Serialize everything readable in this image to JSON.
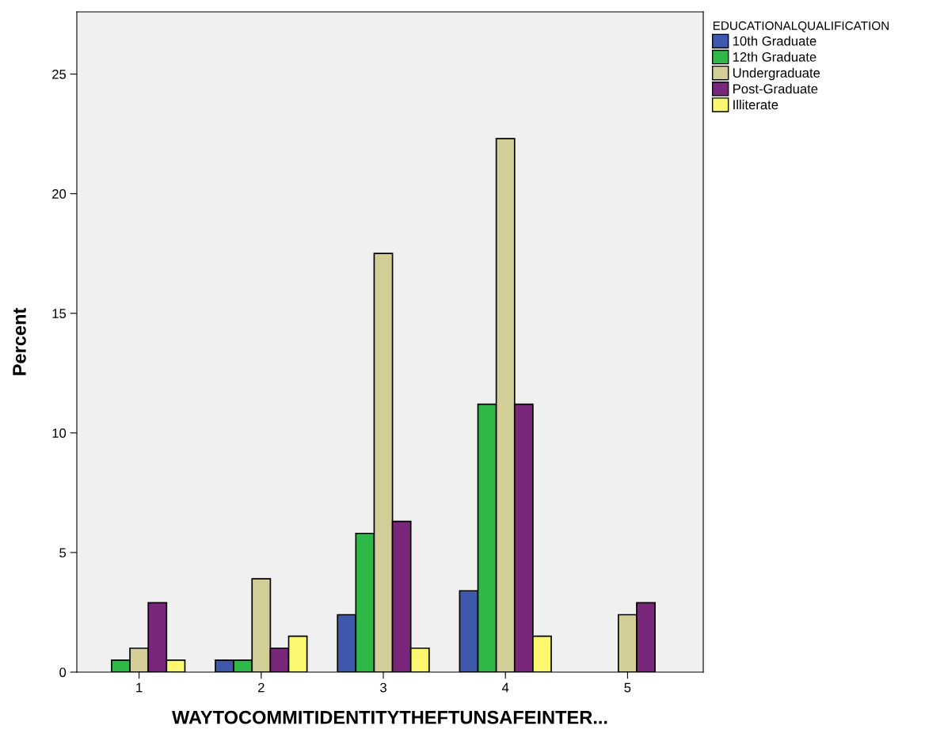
{
  "chart_data": {
    "type": "bar",
    "xlabel": "WAYTOCOMMITIDENTITYTHEFTUNSAFEINTER...",
    "ylabel": "Percent",
    "legend_title": "EDUCATIONALQUALIFICATION",
    "categories": [
      "1",
      "2",
      "3",
      "4",
      "5"
    ],
    "series": [
      {
        "name": "10th Graduate",
        "color": "#3e58ac",
        "values": [
          null,
          0.5,
          2.4,
          3.4,
          null
        ]
      },
      {
        "name": "12th Graduate",
        "color": "#2eb848",
        "values": [
          0.5,
          0.5,
          5.8,
          11.2,
          null
        ]
      },
      {
        "name": "Undergraduate",
        "color": "#d3ce97",
        "values": [
          1.0,
          3.9,
          17.5,
          22.3,
          2.4
        ]
      },
      {
        "name": "Post-Graduate",
        "color": "#79277b",
        "values": [
          2.9,
          1.0,
          6.3,
          11.2,
          2.9
        ]
      },
      {
        "name": "Illiterate",
        "color": "#fbf870",
        "values": [
          0.5,
          1.5,
          1.0,
          1.5,
          null
        ]
      }
    ],
    "ylim": [
      0,
      27.6
    ],
    "yticks": [
      0,
      5,
      10,
      15,
      20,
      25
    ],
    "grid": false,
    "legend": "top right"
  }
}
